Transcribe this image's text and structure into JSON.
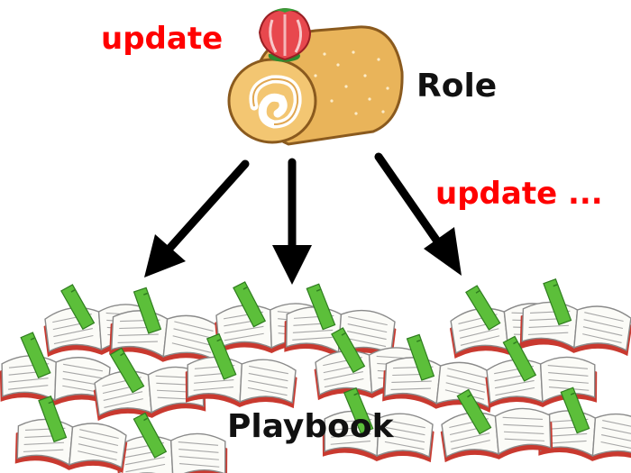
{
  "labels": {
    "update_top": "update",
    "update_right": "update ...",
    "role": "Role",
    "playbook": "Playbook"
  },
  "colors": {
    "update_text": "#ff0000",
    "arrow": "#000000",
    "book_bookmark": "#5cbf3a",
    "book_edge": "#d83a2e",
    "cake_sponge": "#e9b45a",
    "strawberry": "#e8484e"
  },
  "icons": [
    "strawberry-icon",
    "roll-cake-icon",
    "open-book-icon",
    "arrow-icon"
  ]
}
